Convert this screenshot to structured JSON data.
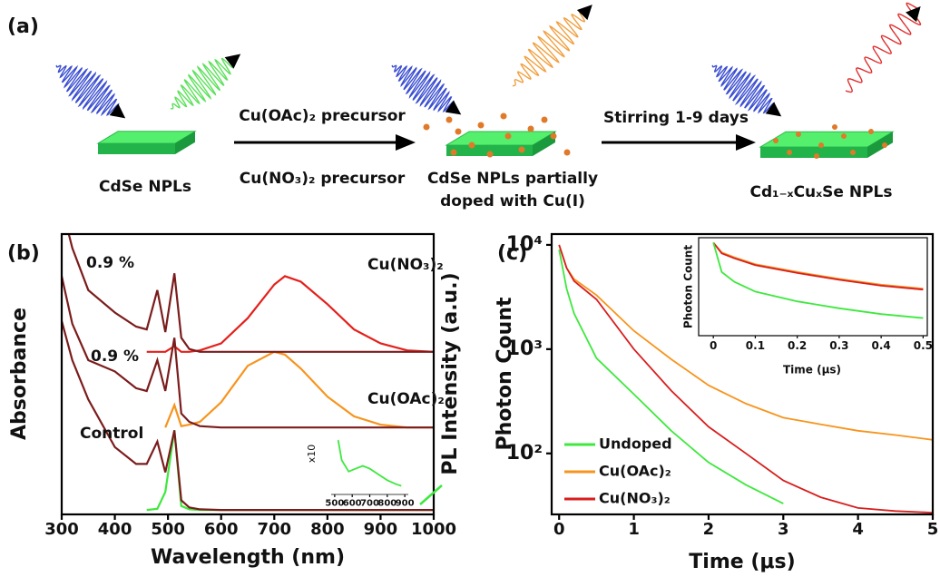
{
  "panel_a": {
    "label": "(a)",
    "arrow1_top": "Cu(OAc)₂ precursor",
    "arrow1_bottom": "Cu(NO₃)₂ precursor",
    "arrow2_top": "Stirring 1-9 days",
    "captions": [
      "CdSe NPLs",
      "CdSe NPLs partially",
      "doped with Cu(I)",
      "Cd₁₋ₓCuₓSe NPLs"
    ]
  },
  "chart_data": [
    {
      "type": "line",
      "panel_label": "(b)",
      "x_label": "Wavelength (nm)",
      "y_label": "Absorbance",
      "right_label": "PL Intensity (a.u.)",
      "xlim": [
        300,
        1000
      ],
      "ylim": [
        0,
        100
      ],
      "xticks": [
        300,
        400,
        500,
        600,
        700,
        800,
        900,
        1000
      ],
      "x_tick_labels": true,
      "annotations": [
        "0.9 %",
        "0.9 %",
        "Control",
        "Cu(NO₃)₂",
        "Cu(OAc)₂"
      ],
      "x": [
        300,
        320,
        350,
        400,
        440,
        460,
        480,
        495,
        512,
        525,
        540,
        560,
        600,
        650,
        700,
        720,
        750,
        800,
        850,
        900,
        950,
        1000
      ],
      "series": [
        {
          "color": "#e3201b",
          "values": [
            null,
            null,
            null,
            null,
            null,
            58,
            58,
            58,
            60,
            58,
            58,
            58.5,
            61,
            70,
            82,
            85,
            83,
            75,
            66,
            61,
            58.5,
            58
          ]
        },
        {
          "color": "#f7941d",
          "values": [
            null,
            null,
            null,
            null,
            null,
            null,
            null,
            31,
            39,
            31.5,
            32,
            33,
            40,
            53,
            58,
            57,
            52,
            42,
            35,
            32,
            31,
            31
          ]
        },
        {
          "color": "#3ee83e",
          "values": [
            null,
            null,
            null,
            null,
            null,
            1.6,
            2,
            8,
            30,
            3,
            1.8,
            1.6,
            1.6,
            1.6,
            1.6,
            1.6,
            1.6,
            1.6,
            1.6,
            1.6,
            1.6,
            1.6
          ]
        },
        {
          "color": "#7b1c1c",
          "values": [
            110,
            95,
            80,
            72,
            67,
            66,
            80,
            65,
            86,
            63,
            59,
            58,
            58,
            58,
            58,
            58,
            58,
            58,
            58,
            58,
            58,
            58
          ]
        },
        {
          "color": "#7b1c1c",
          "values": [
            85,
            68,
            55,
            51,
            45,
            44,
            55,
            44,
            63,
            36,
            33,
            31.5,
            31,
            31,
            31,
            31,
            31,
            31,
            31,
            31,
            31,
            31
          ]
        },
        {
          "color": "#7b1c1c",
          "values": [
            69,
            55,
            41,
            24,
            18,
            18,
            26,
            15,
            30,
            5,
            2.5,
            1.8,
            1.6,
            1.6,
            1.6,
            1.6,
            1.6,
            1.6,
            1.6,
            1.6,
            1.6,
            1.6
          ]
        }
      ]
    },
    {
      "type": "line",
      "xlim": [
        480,
        920
      ],
      "ylim": [
        0,
        100
      ],
      "xticks": [
        500,
        600,
        700,
        800,
        900
      ],
      "annotations": [
        "x10"
      ],
      "x": [
        520,
        540,
        580,
        620,
        660,
        700,
        750,
        800,
        850,
        880
      ],
      "series": [
        {
          "color": "#3ee83e",
          "values": [
            95,
            60,
            40,
            45,
            50,
            45,
            35,
            25,
            18,
            15
          ]
        }
      ]
    },
    {
      "type": "line",
      "panel_label": "(c)",
      "x_label": "Time (μs)",
      "y_label": "Photon Count",
      "log_y": true,
      "xlim": [
        -0.1,
        5
      ],
      "ylim": [
        26,
        12700
      ],
      "xticks": [
        0,
        1,
        2,
        3,
        4,
        5
      ],
      "yticks": [
        {
          "value": 100,
          "label": "10²"
        },
        {
          "value": 1000,
          "label": "10³"
        },
        {
          "value": 10000,
          "label": "10⁴"
        }
      ],
      "legend": "lower left",
      "x": [
        0,
        0.1,
        0.2,
        0.5,
        1,
        1.5,
        2,
        2.5,
        3,
        3.5,
        4,
        4.5,
        5
      ],
      "series": [
        {
          "name": "Undoped",
          "color": "#3ee83e",
          "values": [
            9000,
            3800,
            2200,
            820,
            370,
            165,
            82,
            50,
            33,
            null,
            null,
            null,
            null
          ]
        },
        {
          "name": "Cu(OAc)₂",
          "color": "#f7941d",
          "values": [
            10000,
            6000,
            4700,
            3300,
            1500,
            800,
            450,
            300,
            220,
            190,
            165,
            150,
            135
          ]
        },
        {
          "name": "Cu(NO₃)₂",
          "color": "#d81e1e",
          "values": [
            10000,
            6000,
            4500,
            3000,
            1000,
            400,
            180,
            100,
            55,
            38,
            30,
            28,
            27
          ]
        }
      ]
    },
    {
      "type": "line",
      "x_label": "Time (μs)",
      "y_label": "Photon Count",
      "xlim": [
        -0.035,
        0.51
      ],
      "ylim": [
        0,
        100
      ],
      "xticks": [
        0,
        0.1,
        0.2,
        0.3,
        0.4,
        0.5
      ],
      "x": [
        0,
        0.02,
        0.05,
        0.1,
        0.2,
        0.3,
        0.4,
        0.5
      ],
      "series": [
        {
          "color": "#f7941d",
          "values": [
            95,
            85,
            80,
            73,
            65,
            58,
            52,
            48
          ]
        },
        {
          "color": "#d81e1e",
          "values": [
            95,
            84,
            79,
            72,
            64,
            57,
            51,
            47
          ]
        },
        {
          "color": "#3ee83e",
          "values": [
            95,
            65,
            55,
            45,
            35,
            28,
            22,
            18
          ]
        }
      ]
    }
  ]
}
